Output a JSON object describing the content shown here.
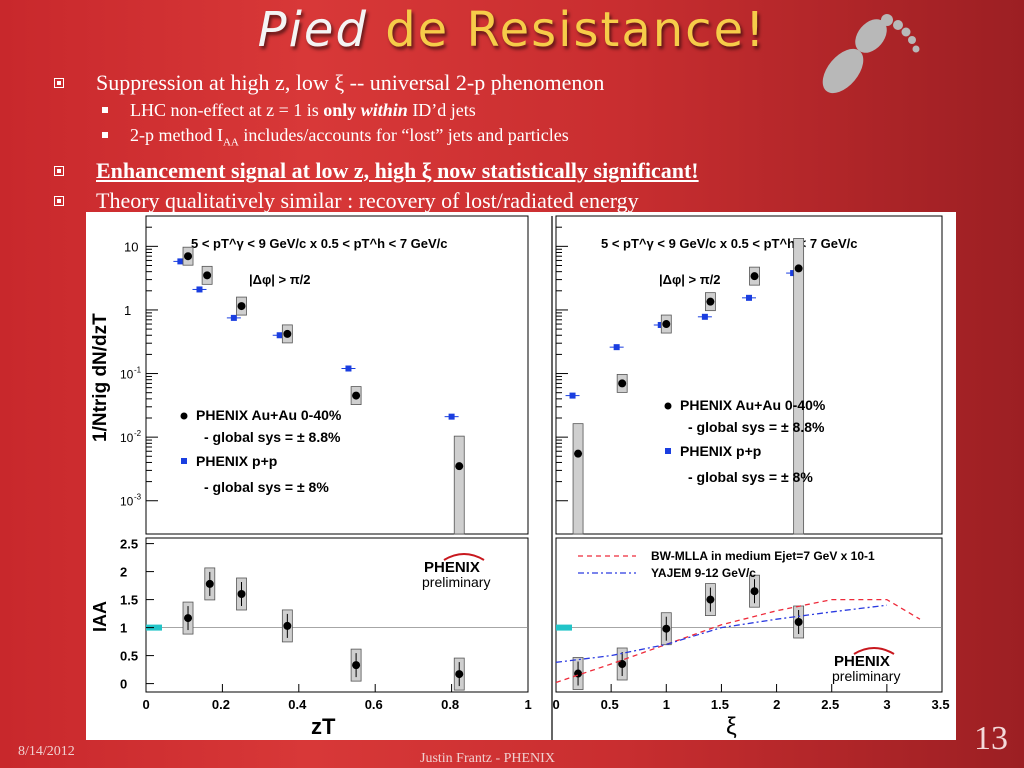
{
  "slide": {
    "title_part1": "Pied",
    "title_part2": "de Resistance!",
    "bullets": [
      {
        "text": "Suppression at high z, low ξ  -- universal 2-p phenomenon"
      },
      {
        "text_a": "LHC non-effect at z = 1 is ",
        "bold": "only",
        "italic": "within",
        "text_b": "  ID’d jets"
      },
      {
        "text_a": "2-p method I",
        "sub": "AA",
        "text_b": " includes/accounts for “lost” jets and particles"
      },
      {
        "text": "Enhancement signal at low z, high ξ now statistically significant!"
      },
      {
        "text": "Theory qualitatively similar  : recovery of lost/radiated energy"
      }
    ],
    "footer_date": "8/14/2012",
    "footer_author": "Justin Frantz - PHENIX",
    "page_number": "13"
  },
  "chart_data": [
    {
      "type": "scatter",
      "panel": "top-left",
      "title": "5 < pT^γ < 9 GeV/c x 0.5 < pT^h < 7 GeV/c",
      "cut": "|Δφ| > π/2",
      "ylabel": "1/Ntrig dN/dzT",
      "yscale": "log",
      "ylim": [
        0.0003,
        30
      ],
      "xlim": [
        0,
        1
      ],
      "yticks": [
        "10",
        "1",
        "10-1",
        "10-2",
        "10-3"
      ],
      "legend": [
        "PHENIX Au+Au 0-40%",
        "- global sys = ± 8.8%",
        "PHENIX p+p",
        "- global sys = ± 8%"
      ],
      "series": [
        {
          "name": "PHENIX Au+Au 0-40%",
          "x": [
            0.11,
            0.16,
            0.25,
            0.37,
            0.55,
            0.82
          ],
          "y": [
            7,
            3.5,
            1.15,
            0.42,
            0.045,
            0.0035
          ]
        },
        {
          "name": "PHENIX p+p",
          "x": [
            0.09,
            0.14,
            0.23,
            0.35,
            0.53,
            0.8
          ],
          "y": [
            5.8,
            2.1,
            0.75,
            0.4,
            0.12,
            0.021
          ]
        }
      ]
    },
    {
      "type": "scatter",
      "panel": "top-right",
      "title": "5 < pT^γ < 9 GeV/c x 0.5 < pT^h < 7 GeV/c",
      "cut": "|Δφ| > π/2",
      "yscale": "log",
      "ylim": [
        0.0003,
        30
      ],
      "xlim": [
        0,
        3.5
      ],
      "legend": [
        "PHENIX Au+Au 0-40%",
        "- global sys = ± 8.8%",
        "PHENIX p+p",
        "- global sys = ± 8%"
      ],
      "series": [
        {
          "name": "PHENIX Au+Au 0-40%",
          "x": [
            0.2,
            0.6,
            1.0,
            1.4,
            1.8,
            2.2
          ],
          "y": [
            0.0055,
            0.07,
            0.6,
            1.35,
            3.4,
            4.5
          ]
        },
        {
          "name": "PHENIX p+p",
          "x": [
            0.15,
            0.55,
            0.95,
            1.35,
            1.75,
            2.15
          ],
          "y": [
            0.045,
            0.26,
            0.58,
            0.78,
            1.55,
            3.8
          ]
        }
      ]
    },
    {
      "type": "scatter",
      "panel": "bottom-left",
      "ylabel": "IAA",
      "xlabel": "zT",
      "xlim": [
        0,
        1
      ],
      "ylim": [
        -0.15,
        2.6
      ],
      "xticks": [
        "0",
        "0.2",
        "0.4",
        "0.6",
        "0.8",
        "1"
      ],
      "yticks": [
        "0",
        "0.5",
        "1",
        "1.5",
        "2",
        "2.5"
      ],
      "logo": "PHENIX",
      "logo_sub": "preliminary",
      "series": [
        {
          "name": "IAA",
          "x": [
            0.11,
            0.167,
            0.25,
            0.37,
            0.55,
            0.82
          ],
          "y": [
            1.17,
            1.78,
            1.6,
            1.03,
            0.33,
            0.17
          ]
        }
      ]
    },
    {
      "type": "scatter",
      "panel": "bottom-right",
      "xlabel": "ξ",
      "xlim": [
        0,
        3.5
      ],
      "ylim": [
        -0.15,
        2.6
      ],
      "xticks": [
        "0",
        "0.5",
        "1",
        "1.5",
        "2",
        "2.5",
        "3",
        "3.5"
      ],
      "logo": "PHENIX",
      "logo_sub": "preliminary",
      "legend": [
        "BW-MLLA in medium Ejet=7 GeV x 10-1",
        "YAJEM 9-12 GeV/c"
      ],
      "series": [
        {
          "name": "IAA",
          "x": [
            0.2,
            0.6,
            1.0,
            1.4,
            1.8,
            2.2
          ],
          "y": [
            0.18,
            0.35,
            0.98,
            1.5,
            1.65,
            1.1
          ]
        },
        {
          "name": "BW-MLLA",
          "x": [
            0.0,
            0.5,
            1.0,
            1.5,
            2.0,
            2.5,
            3.0,
            3.3
          ],
          "y": [
            0.02,
            0.35,
            0.7,
            1.05,
            1.3,
            1.5,
            1.5,
            1.15
          ]
        },
        {
          "name": "YAJEM",
          "x": [
            0.0,
            0.5,
            1.0,
            1.5,
            2.0,
            2.5,
            3.0
          ],
          "y": [
            0.38,
            0.5,
            0.7,
            1.0,
            1.15,
            1.28,
            1.4
          ]
        }
      ]
    }
  ],
  "colors": {
    "auau": "#000000",
    "pp": "#1a3ee0",
    "bw": "#ee2a3a",
    "yajem": "#2a3ae0",
    "band": "#22c4c8",
    "title_gold": "#f6cc49"
  }
}
